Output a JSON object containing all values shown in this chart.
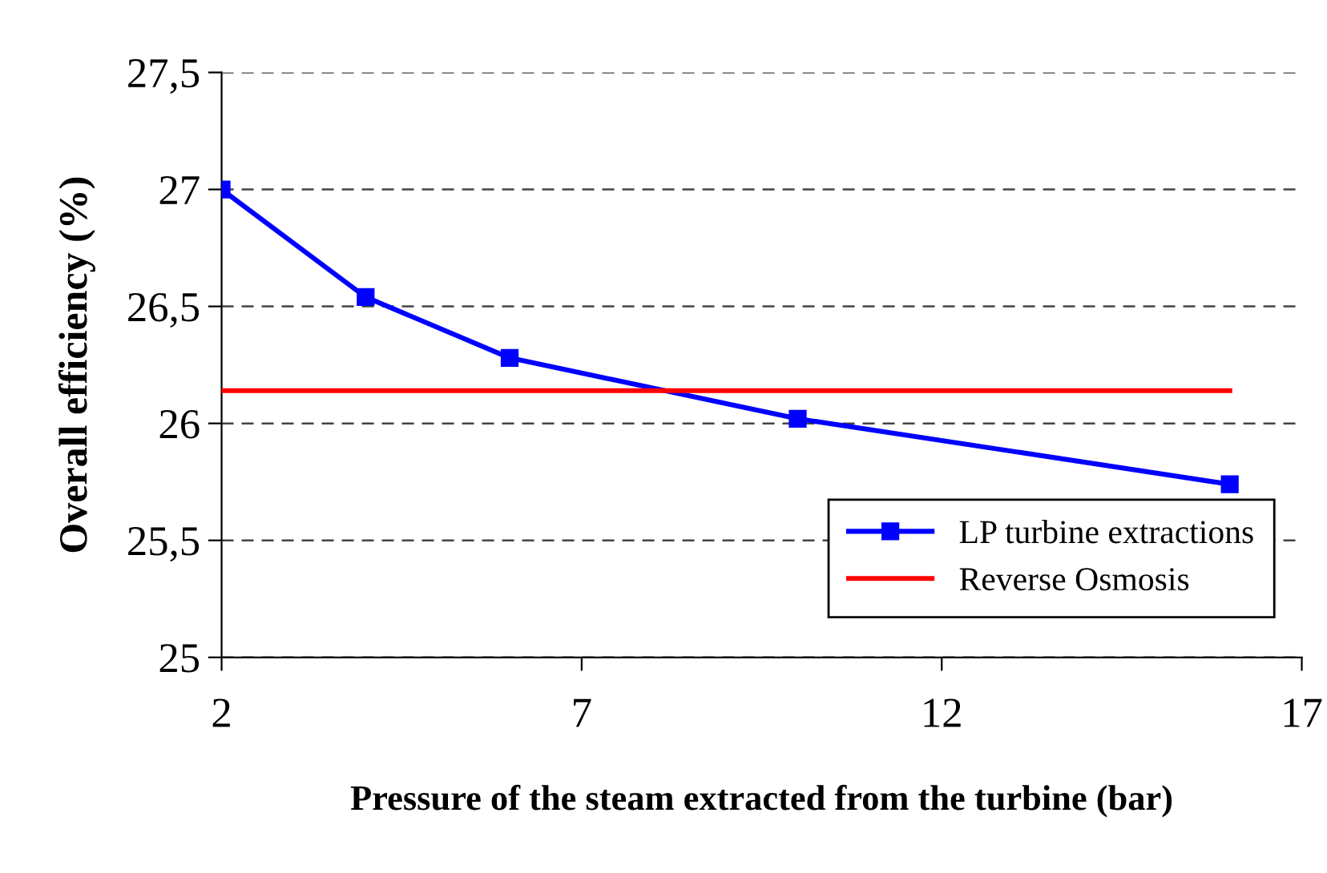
{
  "chart_data": {
    "type": "line",
    "xlabel": "Pressure of the steam extracted from the turbine (bar)",
    "ylabel": "Overall efficiency (%)",
    "series": [
      {
        "name": "LP turbine extractions",
        "color": "#0000ff",
        "x": [
          2,
          4,
          6,
          10,
          16
        ],
        "values": [
          27.0,
          26.54,
          26.28,
          26.02,
          25.74
        ],
        "marker": "square"
      },
      {
        "name": "Reverse Osmosis",
        "color": "#ff0000",
        "x": [
          2,
          16
        ],
        "values": [
          26.14,
          26.14
        ],
        "marker": "none"
      }
    ],
    "xlim": [
      2,
      17
    ],
    "xticks": [
      2,
      7,
      12,
      17
    ],
    "ylim": [
      25,
      27.5
    ],
    "yticks": [
      25,
      {
        "value": 25.5,
        "label": "25,5"
      },
      26,
      {
        "value": 26.5,
        "label": "26,5"
      },
      27,
      {
        "value": 27.5,
        "label": "27,5"
      }
    ],
    "grid": "y",
    "legend": "bottom right",
    "line_style": "solid"
  }
}
